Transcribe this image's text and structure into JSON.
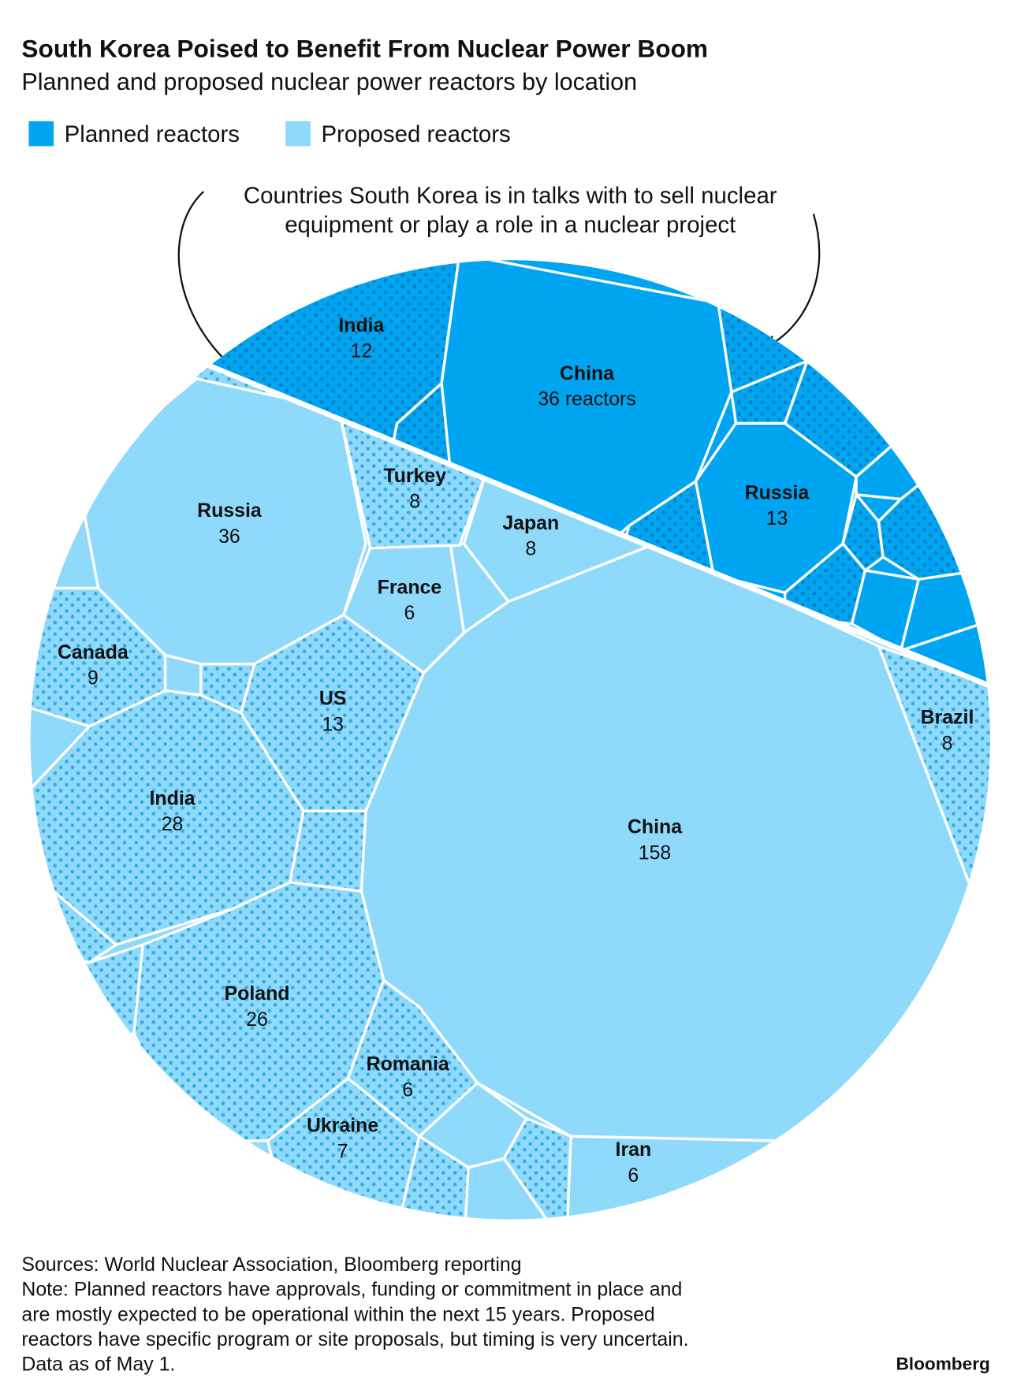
{
  "chart_data": {
    "type": "voronoi-treemap",
    "title": "South Korea Poised to Benefit From Nuclear Power Boom",
    "subtitle": "Planned and proposed nuclear power reactors by location",
    "annotation_lines": [
      "Countries South Korea is in talks with to sell nuclear",
      "equipment or play a role in a nuclear project"
    ],
    "series": [
      {
        "name": "Planned reactors",
        "color": "#00a5f2",
        "dot_color": "#0a7fc4",
        "labels": [
          "India",
          "China",
          "Russia"
        ],
        "values": [
          12,
          36,
          13
        ],
        "value_labels": [
          "12",
          "36 reactors",
          "13"
        ],
        "talks": [
          true,
          false,
          false
        ]
      },
      {
        "name": "Proposed reactors",
        "color": "#8fd9fb",
        "dot_color": "#35ace4",
        "labels": [
          "Russia",
          "Turkey",
          "Japan",
          "France",
          "Canada",
          "US",
          "India",
          "China",
          "Brazil",
          "Poland",
          "Romania",
          "Ukraine",
          "Iran"
        ],
        "values": [
          36,
          8,
          8,
          6,
          9,
          13,
          28,
          158,
          8,
          26,
          6,
          7,
          6
        ],
        "talks": [
          false,
          true,
          false,
          false,
          true,
          true,
          true,
          false,
          true,
          true,
          true,
          true,
          false
        ]
      }
    ],
    "notes": [
      "Sources: World Nuclear Association, Bloomberg reporting",
      "Note: Planned reactors have approvals, funding or commitment in place and",
      "are mostly expected to be operational within the next 15 years. Proposed",
      "reactors have specific program or site proposals, but timing is very uncertain.",
      "Data as of May 1."
    ],
    "credit": "Bloomberg"
  }
}
